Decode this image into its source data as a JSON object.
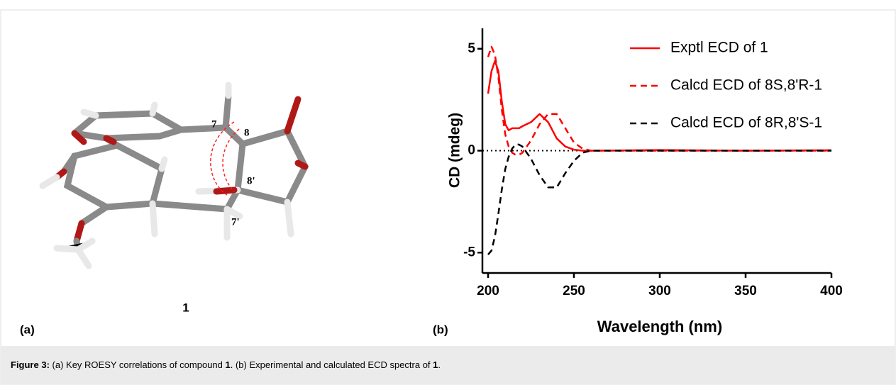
{
  "panel_a": {
    "label": "(a)",
    "compound": "1",
    "atom_labels": [
      "7",
      "8",
      "8'",
      "7'"
    ]
  },
  "panel_b": {
    "label": "(b)"
  },
  "chart_data": {
    "type": "line",
    "xlabel": "Wavelength (nm)",
    "ylabel": "CD (mdeg)",
    "x": [
      200,
      202,
      204,
      206,
      208,
      210,
      212,
      214,
      216,
      218,
      220,
      225,
      230,
      235,
      240,
      245,
      250,
      255,
      260,
      300,
      350,
      400
    ],
    "series": [
      {
        "name": "Exptl ECD of 1",
        "color": "#ff0000",
        "dashed": false,
        "values": [
          2.8,
          3.9,
          4.4,
          3.9,
          2.4,
          1.3,
          1.0,
          1.1,
          1.1,
          1.1,
          1.2,
          1.4,
          1.8,
          1.4,
          0.6,
          0.2,
          0.05,
          0,
          0,
          0.03,
          0,
          0.02
        ]
      },
      {
        "name": "Calcd ECD of 8S,8'R-1",
        "color": "#ff0000",
        "dashed": true,
        "values": [
          4.6,
          5.1,
          4.7,
          3.6,
          2.0,
          0.8,
          0.2,
          -0.1,
          -0.2,
          -0.2,
          -0.1,
          0.5,
          1.3,
          1.8,
          1.8,
          1.1,
          0.4,
          0.1,
          0,
          0,
          0,
          0
        ]
      },
      {
        "name": "Calcd ECD of 8R,8'S-1",
        "color": "#000000",
        "dashed": true,
        "values": [
          -5.1,
          -4.9,
          -4.2,
          -3.1,
          -1.9,
          -0.9,
          -0.3,
          0.1,
          0.3,
          0.3,
          0.2,
          -0.4,
          -1.2,
          -1.8,
          -1.8,
          -1.1,
          -0.5,
          -0.1,
          0,
          0,
          0,
          0
        ]
      }
    ],
    "xlim": [
      200,
      400
    ],
    "xticks": [
      200,
      250,
      300,
      350,
      400
    ],
    "ylim": [
      -6,
      6
    ],
    "yticks": [
      -5,
      0,
      5
    ],
    "zero_line": true,
    "legend": "upper right",
    "grid": false
  },
  "caption": {
    "label": "Figure 3:",
    "segments": [
      {
        "text": " (a) Key ROESY correlations of compound ",
        "bold": false
      },
      {
        "text": "1",
        "bold": true
      },
      {
        "text": ". (b) Experimental and calculated ECD spectra of ",
        "bold": false
      },
      {
        "text": "1",
        "bold": true
      },
      {
        "text": ".",
        "bold": false
      }
    ]
  }
}
